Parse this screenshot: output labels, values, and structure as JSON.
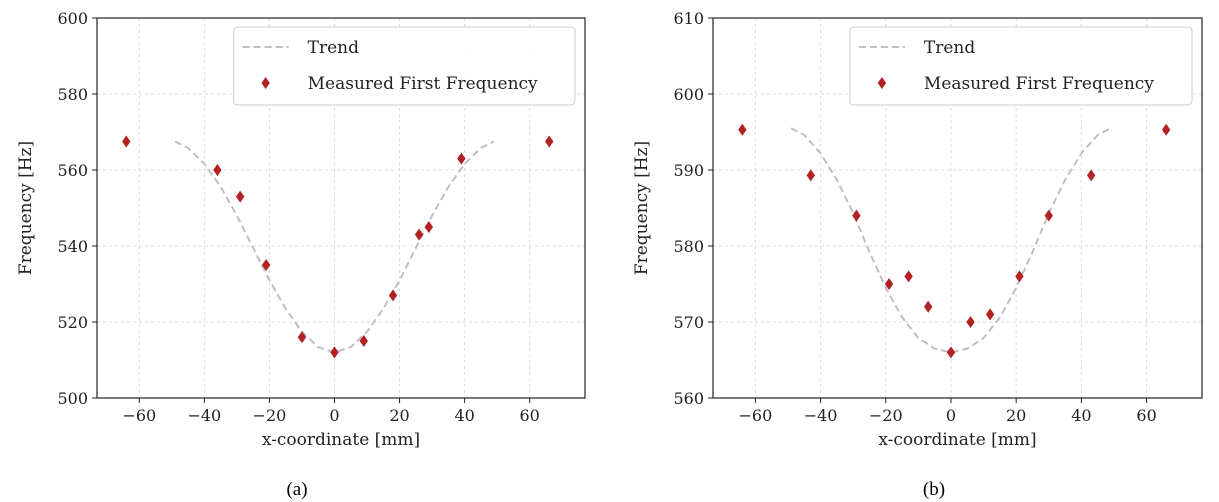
{
  "chart_data": [
    {
      "type": "scatter",
      "caption": "(a)",
      "xlabel": "x-coordinate [mm]",
      "ylabel": "Frequency [Hz]",
      "xlim": [
        -73,
        77
      ],
      "ylim": [
        500,
        600
      ],
      "xticks": [
        -60,
        -40,
        -20,
        0,
        20,
        40,
        60
      ],
      "yticks": [
        500,
        520,
        540,
        560,
        580,
        600
      ],
      "grid": true,
      "legend_position": "top-right",
      "series": [
        {
          "name": "Trend",
          "kind": "dashed-line",
          "color": "#bfbfbf",
          "x": [
            -49,
            -45,
            -40,
            -35,
            -30,
            -25,
            -20,
            -15,
            -10,
            -5,
            0,
            5,
            10,
            15,
            20,
            25,
            30,
            35,
            40,
            45,
            49
          ],
          "y": [
            567.5,
            565.8,
            561.6,
            555.6,
            548.0,
            539.5,
            531.0,
            523.5,
            517.4,
            513.4,
            512.0,
            513.4,
            517.4,
            523.5,
            531.0,
            539.5,
            548.0,
            555.6,
            561.6,
            565.8,
            567.5
          ]
        },
        {
          "name": "Measured First Frequency",
          "kind": "diamond-markers",
          "color": "#b22222",
          "x": [
            -64,
            -36,
            -29,
            -21,
            -10,
            0,
            9,
            18,
            26,
            29,
            39,
            66
          ],
          "y": [
            567.5,
            560,
            553,
            535,
            516,
            512,
            515,
            527,
            543,
            545,
            563,
            567.5
          ]
        }
      ]
    },
    {
      "type": "scatter",
      "caption": "(b)",
      "xlabel": "x-coordinate [mm]",
      "ylabel": "Frequency [Hz]",
      "xlim": [
        -73,
        77
      ],
      "ylim": [
        560,
        610
      ],
      "xticks": [
        -60,
        -40,
        -20,
        0,
        20,
        40,
        60
      ],
      "yticks": [
        560,
        570,
        580,
        590,
        600,
        610
      ],
      "grid": true,
      "legend_position": "top-right",
      "series": [
        {
          "name": "Trend",
          "kind": "dashed-line",
          "color": "#bfbfbf",
          "x": [
            -49,
            -45,
            -40,
            -35,
            -30,
            -25,
            -20,
            -15,
            -10,
            -5,
            0,
            5,
            10,
            15,
            20,
            25,
            30,
            35,
            40,
            45,
            49
          ],
          "y": [
            595.5,
            594.6,
            592.2,
            588.7,
            584.3,
            579.2,
            574.5,
            570.6,
            567.9,
            566.5,
            566.0,
            566.5,
            567.9,
            570.6,
            574.5,
            579.2,
            584.3,
            588.7,
            592.2,
            594.6,
            595.5
          ]
        },
        {
          "name": "Measured First Frequency",
          "kind": "diamond-markers",
          "color": "#b22222",
          "x": [
            -64,
            -43,
            -29,
            -19,
            -13,
            -7,
            0,
            6,
            12,
            21,
            30,
            43,
            66
          ],
          "y": [
            595.3,
            589.3,
            584,
            575,
            576,
            572,
            566,
            570,
            571,
            576,
            584,
            589.3,
            595.3
          ]
        }
      ]
    }
  ]
}
